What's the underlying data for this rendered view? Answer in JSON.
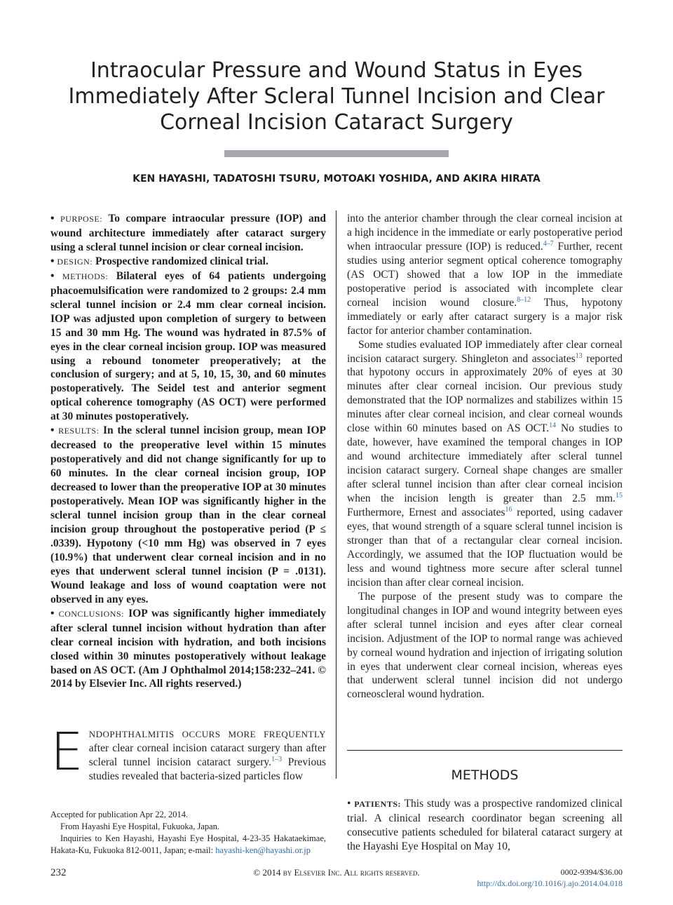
{
  "header": {
    "title": [
      "Intraocular Pressure and Wound Status in Eyes",
      "Immediately After Scleral Tunnel Incision and Clear",
      "Corneal Incision Cataract Surgery"
    ],
    "authors": "KEN HAYASHI, TADATOSHI TSURU, MOTOAKI YOSHIDA, AND AKIRA HIRATA"
  },
  "abstract": [
    {
      "label": "PURPOSE:",
      "text": "To compare intraocular pressure (IOP) and wound architecture immediately after cataract surgery using a scleral tunnel incision or clear corneal incision."
    },
    {
      "label": "DESIGN:",
      "text": "Prospective randomized clinical trial."
    },
    {
      "label": "METHODS:",
      "text": "Bilateral eyes of 64 patients undergoing phacoemulsification were randomized to 2 groups: 2.4 mm scleral tunnel incision or 2.4 mm clear corneal incision. IOP was adjusted upon completion of surgery to between 15 and 30 mm Hg. The wound was hydrated in 87.5% of eyes in the clear corneal incision group. IOP was measured using a rebound tonometer preoperatively; at the conclusion of surgery; and at 5, 10, 15, 30, and 60 minutes postoperatively. The Seidel test and anterior segment optical coherence tomography (AS OCT) were performed at 30 minutes postoperatively."
    },
    {
      "label": "RESULTS:",
      "text": "In the scleral tunnel incision group, mean IOP decreased to the preoperative level within 15 minutes postoperatively and did not change significantly for up to 60 minutes. In the clear corneal incision group, IOP decreased to lower than the preoperative IOP at 30 minutes postoperatively. Mean IOP was significantly higher in the scleral tunnel incision group than in the clear corneal incision group throughout the postoperative period (P ≤ .0339). Hypotony (<10 mm Hg) was observed in 7 eyes (10.9%) that underwent clear corneal incision and in no eyes that underwent scleral tunnel incision (P = .0131). Wound leakage and loss of wound coaptation were not observed in any eyes."
    },
    {
      "label": "CONCLUSIONS:",
      "text": "IOP was significantly higher immediately after scleral tunnel incision without hydration than after clear corneal incision with hydration, and both incisions closed within 30 minutes postoperatively without leakage based on AS OCT. (Am J Ophthalmol 2014;158:232–241. © 2014 by Elsevier Inc. All rights reserved.)"
    }
  ],
  "intro": {
    "dropcap": "E",
    "smallcaps": "NDOPHTHALMITIS OCCURS MORE FREQUENTLY",
    "parts": [
      {
        "text": " after clear corneal incision cataract surgery than after scleral tunnel incision cataract surgery."
      },
      {
        "sup": "1–3"
      },
      {
        "text": " Previous studies revealed that bacteria-sized particles flow"
      }
    ]
  },
  "body": [
    {
      "parts": [
        {
          "text": "into the anterior chamber through the clear corneal incision at a high incidence in the immediate or early postoperative period when intraocular pressure (IOP) is reduced."
        },
        {
          "sup": "4–7"
        },
        {
          "text": " Further, recent studies using anterior segment optical coherence tomography (AS OCT) showed that a low IOP in the immediate postoperative period is associated with incomplete clear corneal incision wound closure."
        },
        {
          "sup": "8–12"
        },
        {
          "text": " Thus, hypotony immediately or early after cataract surgery is a major risk factor for anterior chamber contamination."
        }
      ]
    },
    {
      "parts": [
        {
          "text": "Some studies evaluated IOP immediately after clear corneal incision cataract surgery. Shingleton and associates"
        },
        {
          "sup": "13"
        },
        {
          "text": " reported that hypotony occurs in approximately 20% of eyes at 30 minutes after clear corneal incision. Our previous study demonstrated that the IOP normalizes and stabilizes within 15 minutes after clear corneal incision, and clear corneal wounds close within 60 minutes based on AS OCT."
        },
        {
          "sup": "14"
        },
        {
          "text": " No studies to date, however, have examined the temporal changes in IOP and wound architecture immediately after scleral tunnel incision cataract surgery. Corneal shape changes are smaller after scleral tunnel incision than after clear corneal incision when the incision length is greater than 2.5 mm."
        },
        {
          "sup": "15"
        },
        {
          "text": " Furthermore, Ernest and associates"
        },
        {
          "sup": "16"
        },
        {
          "text": " reported, using cadaver eyes, that wound strength of a square scleral tunnel incision is stronger than that of a rectangular clear corneal incision. Accordingly, we assumed that the IOP fluctuation would be less and wound tightness more secure after scleral tunnel incision than after clear corneal incision."
        }
      ]
    },
    {
      "parts": [
        {
          "text": "The purpose of the present study was to compare the longitudinal changes in IOP and wound integrity between eyes after scleral tunnel incision and eyes after clear corneal incision. Adjustment of the IOP to normal range was achieved by corneal wound hydration and injection of irrigating solution in eyes that underwent clear corneal incision, whereas eyes that underwent scleral tunnel incision did not undergo corneoscleral wound hydration."
        }
      ]
    }
  ],
  "methods": {
    "heading": "METHODS",
    "label": "PATIENTS:",
    "text": "This study was a prospective randomized clinical trial. A clinical research coordinator began screening all consecutive patients scheduled for bilateral cataract surgery at the Hayashi Eye Hospital on May 10,"
  },
  "footnotes": {
    "accepted": "Accepted for publication Apr 22, 2014.",
    "from": "From Hayashi Eye Hospital, Fukuoka, Japan.",
    "inquiries": "Inquiries to Ken Hayashi, Hayashi Eye Hospital, 4-23-35 Hakataekimae, Hakata-Ku, Fukuoka 812-0011, Japan; e-mail: ",
    "email": "hayashi-ken@hayashi.or.jp"
  },
  "footer": {
    "page": "232",
    "copyright": "© 2014 by Elsevier Inc. All rights reserved.",
    "issn": "0002-9394/$36.00",
    "doi": "http://dx.doi.org/10.1016/j.ajo.2014.04.018"
  }
}
